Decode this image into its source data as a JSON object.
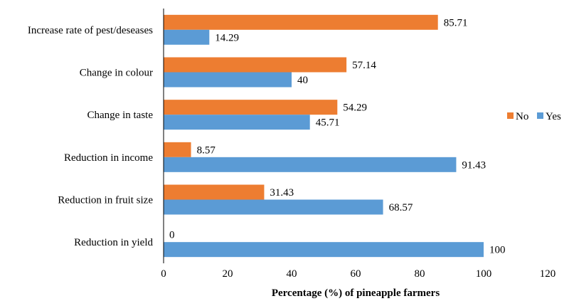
{
  "chart_data": {
    "type": "bar",
    "orientation": "horizontal",
    "categories": [
      "Increase rate of pest/deseases",
      "Change in colour",
      "Change in taste",
      "Reduction in income",
      "Reduction in fruit size",
      "Reduction in yield"
    ],
    "series": [
      {
        "name": "No",
        "color": "#ED7D31",
        "values": [
          85.71,
          57.14,
          54.29,
          8.57,
          31.43,
          0
        ]
      },
      {
        "name": "Yes",
        "color": "#5B9BD5",
        "values": [
          14.29,
          40,
          45.71,
          91.43,
          68.57,
          100
        ]
      }
    ],
    "data_labels": {
      "No": [
        "85.71",
        "57.14",
        "54.29",
        "8.57",
        "31.43",
        "0"
      ],
      "Yes": [
        "14.29",
        "40",
        "45.71",
        "91.43",
        "68.57",
        "100"
      ]
    },
    "xlabel": "Percentage (%) of pineapple farmers",
    "ylabel": "",
    "xlim": [
      0,
      120
    ],
    "xticks": [
      "0",
      "20",
      "40",
      "60",
      "80",
      "100",
      "120"
    ],
    "legend_order": [
      "No",
      "Yes"
    ],
    "legend_position": "right",
    "grid": false
  }
}
